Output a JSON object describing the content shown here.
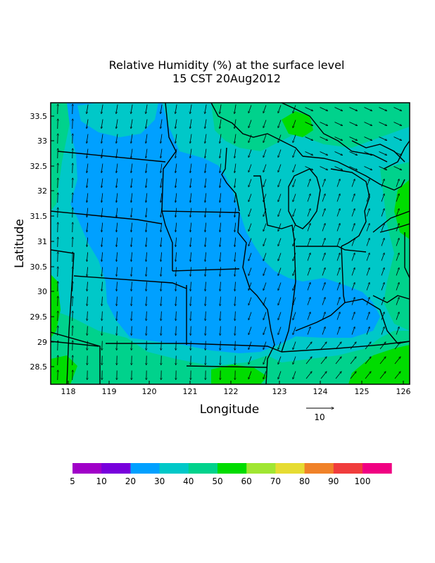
{
  "title_line1": "Relative Humidity (%) at the surface level",
  "title_line2": "15 CST 20Aug2012",
  "x_label": "Longitude",
  "y_label": "Latitude",
  "x_ticks": [
    "118",
    "119",
    "120",
    "121",
    "122",
    "123",
    "124",
    "125",
    "126"
  ],
  "y_ticks": [
    "33.5",
    "33",
    "32.5",
    "32",
    "31.5",
    "31",
    "30.5",
    "30",
    "29.5",
    "29",
    "28.5"
  ],
  "vector_reference_label": "10",
  "colorbar": {
    "labels": [
      "5",
      "10",
      "20",
      "30",
      "40",
      "50",
      "60",
      "70",
      "80",
      "90",
      "100"
    ],
    "colors": [
      "#a000c8",
      "#7800dc",
      "#00a0ff",
      "#00c8c8",
      "#00d28c",
      "#00dc00",
      "#a0e632",
      "#e6dc32",
      "#f08228",
      "#f03c3c",
      "#f00082"
    ]
  },
  "fill_colors": {
    "rh_20_30": "#00a0ff",
    "rh_30_40": "#00c8c8",
    "rh_40_50": "#00d28c",
    "rh_50_60": "#00dc00"
  }
}
